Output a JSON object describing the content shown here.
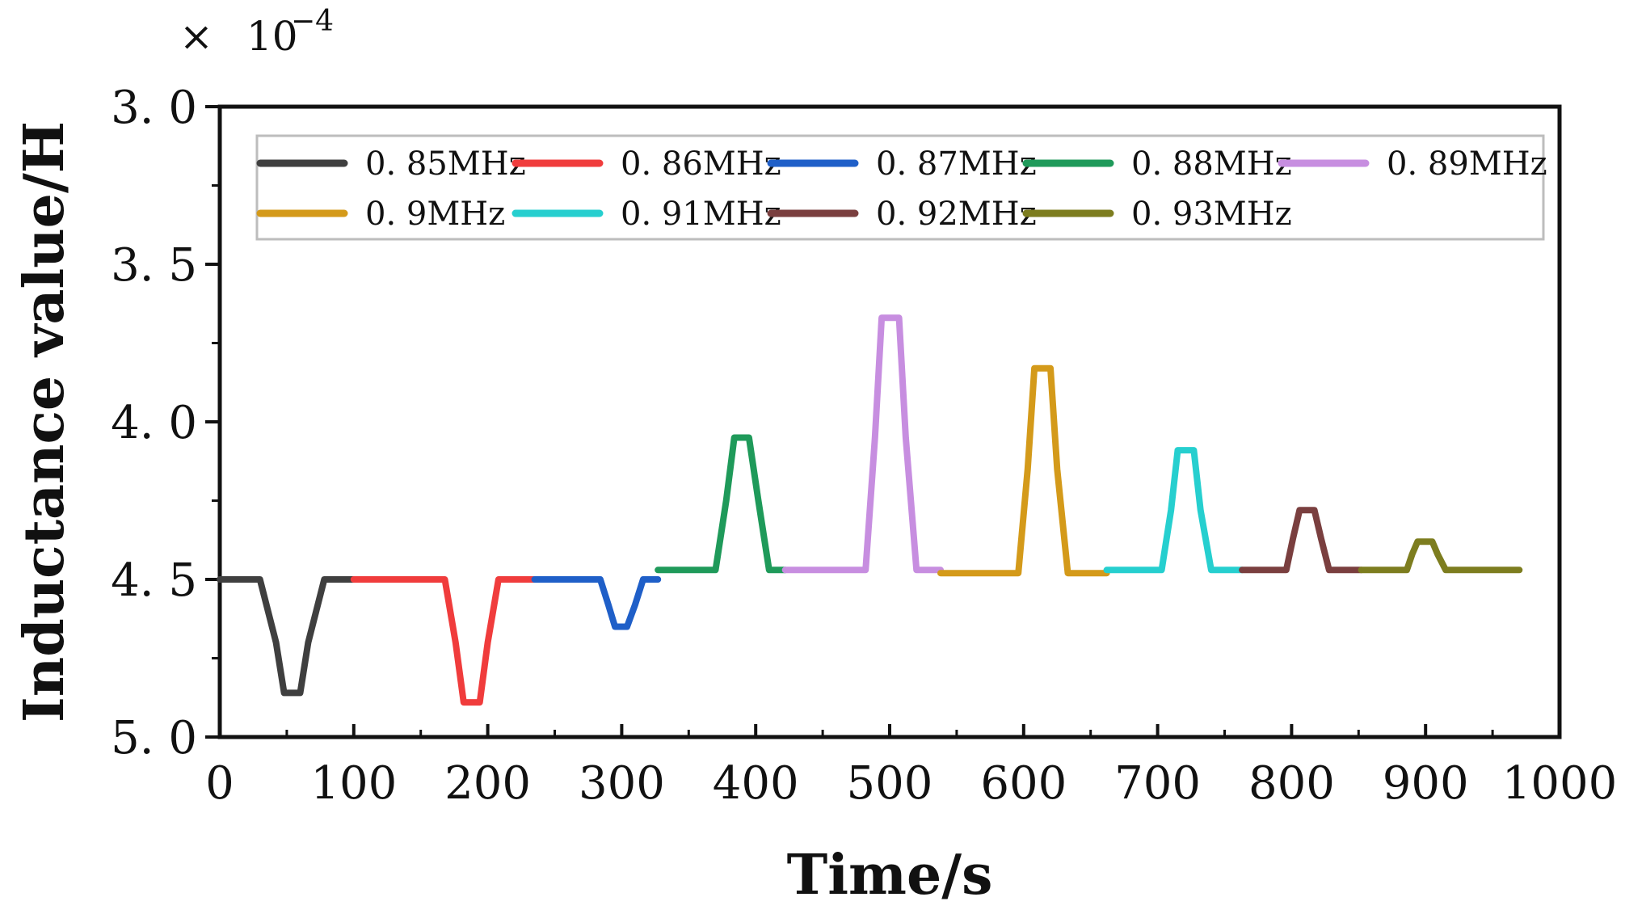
{
  "chart_data": {
    "type": "line",
    "title": "",
    "xlabel": "Time/s",
    "ylabel": "Inductance value/H",
    "y_multiplier": {
      "times": "×",
      "base": "10",
      "exponent": "−4"
    },
    "xlim": [
      0,
      1000
    ],
    "ylim": [
      5.0,
      3.0
    ],
    "y_inverted": true,
    "xticks": [
      "0",
      "100",
      "200",
      "300",
      "400",
      "500",
      "600",
      "700",
      "800",
      "900",
      "1000"
    ],
    "yticks": [
      "3. 0",
      "3. 5",
      "4. 0",
      "4. 5",
      "5. 0"
    ],
    "grid": false,
    "legend_position": "top",
    "series": [
      {
        "name": "0. 85MHz",
        "color": "#3f3f3f",
        "x": [
          0,
          30,
          42,
          48,
          60,
          66,
          78,
          100
        ],
        "y": [
          4.5,
          4.5,
          4.7,
          4.86,
          4.86,
          4.7,
          4.5,
          4.5
        ]
      },
      {
        "name": "0. 86MHz",
        "color": "#f03c3c",
        "x": [
          100,
          168,
          176,
          182,
          194,
          200,
          208,
          235
        ],
        "y": [
          4.5,
          4.5,
          4.7,
          4.89,
          4.89,
          4.7,
          4.5,
          4.5
        ]
      },
      {
        "name": "0. 87MHz",
        "color": "#1f5fc8",
        "x": [
          235,
          284,
          290,
          295,
          304,
          310,
          316,
          327
        ],
        "y": [
          4.5,
          4.5,
          4.58,
          4.65,
          4.65,
          4.58,
          4.5,
          4.5
        ]
      },
      {
        "name": "0. 88MHz",
        "color": "#1f9a5a",
        "x": [
          327,
          370,
          378,
          384,
          395,
          402,
          410,
          422
        ],
        "y": [
          4.47,
          4.47,
          4.25,
          4.05,
          4.05,
          4.25,
          4.47,
          4.47
        ]
      },
      {
        "name": "0. 89MHz",
        "color": "#c78ee0",
        "x": [
          422,
          482,
          489,
          494,
          507,
          512,
          520,
          538
        ],
        "y": [
          4.47,
          4.47,
          4.05,
          3.67,
          3.67,
          4.05,
          4.47,
          4.47
        ]
      },
      {
        "name": "0. 9MHz",
        "color": "#d49a1a",
        "x": [
          538,
          596,
          603,
          608,
          620,
          625,
          633,
          662
        ],
        "y": [
          4.48,
          4.48,
          4.15,
          3.83,
          3.83,
          4.15,
          4.48,
          4.48
        ]
      },
      {
        "name": "0. 91MHz",
        "color": "#26cfcf",
        "x": [
          662,
          703,
          710,
          715,
          727,
          732,
          740,
          763
        ],
        "y": [
          4.47,
          4.47,
          4.28,
          4.09,
          4.09,
          4.28,
          4.47,
          4.47
        ]
      },
      {
        "name": "0. 92MHz",
        "color": "#7a3f3f",
        "x": [
          763,
          796,
          801,
          806,
          817,
          822,
          828,
          852
        ],
        "y": [
          4.47,
          4.47,
          4.37,
          4.28,
          4.28,
          4.37,
          4.47,
          4.47
        ]
      },
      {
        "name": "0. 93MHz",
        "color": "#7d7d1f",
        "x": [
          852,
          886,
          890,
          894,
          905,
          909,
          915,
          970
        ],
        "y": [
          4.47,
          4.47,
          4.42,
          4.38,
          4.38,
          4.42,
          4.47,
          4.47
        ]
      }
    ]
  }
}
